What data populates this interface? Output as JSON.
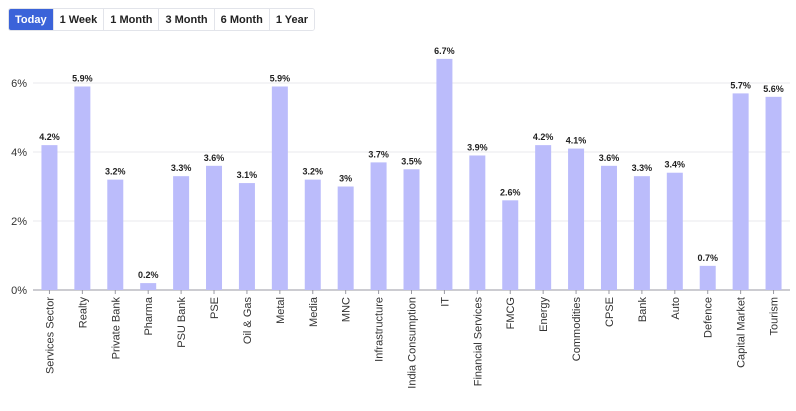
{
  "tabs": [
    {
      "label": "Today",
      "active": true
    },
    {
      "label": "1 Week",
      "active": false
    },
    {
      "label": "1 Month",
      "active": false
    },
    {
      "label": "3 Month",
      "active": false
    },
    {
      "label": "6 Month",
      "active": false
    },
    {
      "label": "1 Year",
      "active": false
    }
  ],
  "colors": {
    "accent": "#3b63d9",
    "bar": "#bbbcfb",
    "grid": "#e8e8ee"
  },
  "chart_data": {
    "type": "bar",
    "categories": [
      "Services Sector",
      "Realty",
      "Private Bank",
      "Pharma",
      "PSU Bank",
      "PSE",
      "Oil & Gas",
      "Metal",
      "Media",
      "MNC",
      "Infrastructure",
      "India Consumption",
      "IT",
      "Financial Services",
      "FMCG",
      "Energy",
      "Commodities",
      "CPSE",
      "Bank",
      "Auto",
      "Defence",
      "Capital Market",
      "Tourism"
    ],
    "values": [
      4.2,
      5.9,
      3.2,
      0.2,
      3.3,
      3.6,
      3.1,
      5.9,
      3.2,
      3.0,
      3.7,
      3.5,
      6.7,
      3.9,
      2.6,
      4.2,
      4.1,
      3.6,
      3.3,
      3.4,
      0.7,
      5.7,
      5.6
    ],
    "value_labels": [
      "4.2%",
      "5.9%",
      "3.2%",
      "0.2%",
      "3.3%",
      "3.6%",
      "3.1%",
      "5.9%",
      "3.2%",
      "3%",
      "3.7%",
      "3.5%",
      "6.7%",
      "3.9%",
      "2.6%",
      "4.2%",
      "4.1%",
      "3.6%",
      "3.3%",
      "3.4%",
      "0.7%",
      "5.7%",
      "5.6%"
    ],
    "yticks": [
      0,
      2,
      4,
      6
    ],
    "ytick_labels": [
      "0%",
      "2%",
      "4%",
      "6%"
    ],
    "ylim": [
      0,
      6.9
    ],
    "grid": true,
    "title": "",
    "xlabel": "",
    "ylabel": ""
  }
}
